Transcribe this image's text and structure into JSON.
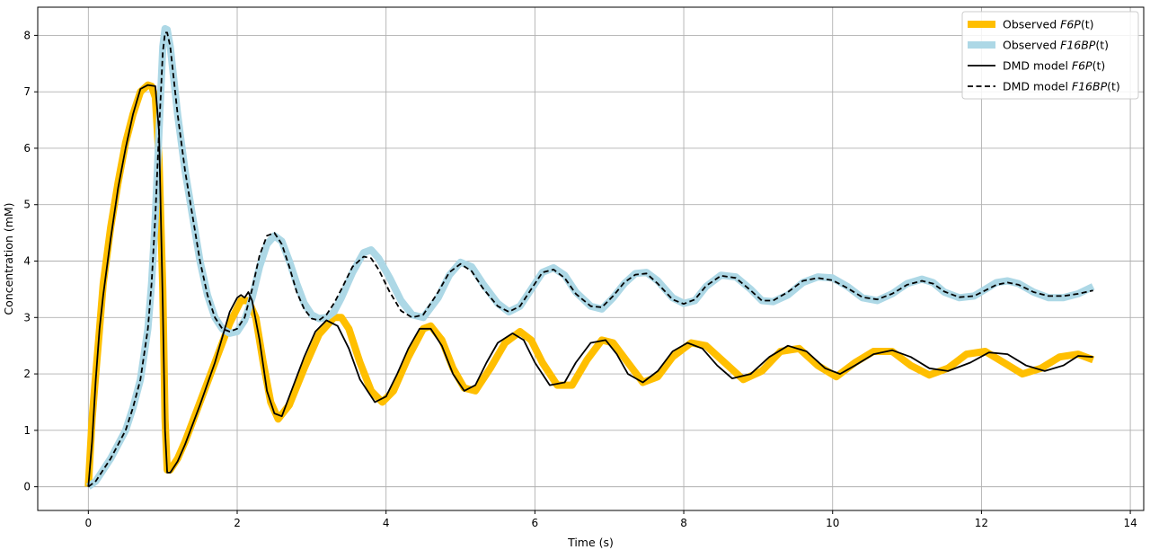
{
  "chart_data": {
    "type": "line",
    "title": "",
    "xlabel": "Time (s)",
    "ylabel": "Concentration (mM)",
    "xlim": [
      -0.68,
      14.18
    ],
    "ylim": [
      -0.42,
      8.5
    ],
    "xticks": [
      0,
      2,
      4,
      6,
      8,
      10,
      12,
      14
    ],
    "yticks": [
      0,
      1,
      2,
      3,
      4,
      5,
      6,
      7,
      8
    ],
    "grid": true,
    "legend_position": "upper right",
    "series": [
      {
        "name": "Observed F6P(t)",
        "legend_prefix": "Observed ",
        "legend_italic": "F6P",
        "legend_suffix": "(t)",
        "style": "thick",
        "color": "#FFBF00",
        "x": [
          0,
          0.05,
          0.1,
          0.15,
          0.2,
          0.3,
          0.4,
          0.5,
          0.6,
          0.7,
          0.8,
          0.85,
          0.9,
          0.95,
          1.0,
          1.03,
          1.06,
          1.1,
          1.2,
          1.3,
          1.5,
          1.7,
          1.9,
          2.05,
          2.15,
          2.25,
          2.35,
          2.45,
          2.55,
          2.7,
          2.9,
          3.1,
          3.3,
          3.4,
          3.5,
          3.65,
          3.8,
          3.95,
          4.1,
          4.3,
          4.5,
          4.6,
          4.75,
          4.9,
          5.05,
          5.2,
          5.4,
          5.6,
          5.8,
          5.95,
          6.1,
          6.3,
          6.5,
          6.7,
          6.9,
          7.05,
          7.25,
          7.45,
          7.65,
          7.85,
          8.1,
          8.3,
          8.55,
          8.8,
          9.05,
          9.3,
          9.55,
          9.8,
          10.05,
          10.3,
          10.55,
          10.8,
          11.05,
          11.3,
          11.55,
          11.8,
          12.05,
          12.3,
          12.55,
          12.8,
          13.05,
          13.3,
          13.5
        ],
        "y": [
          0,
          1.2,
          2.0,
          2.8,
          3.6,
          4.6,
          5.4,
          6.1,
          6.6,
          7.0,
          7.12,
          7.1,
          6.9,
          5.8,
          3.5,
          1.2,
          0.3,
          0.3,
          0.5,
          0.8,
          1.5,
          2.2,
          2.9,
          3.3,
          3.3,
          3.0,
          2.2,
          1.5,
          1.2,
          1.45,
          2.1,
          2.7,
          3.0,
          3.0,
          2.8,
          2.2,
          1.7,
          1.5,
          1.7,
          2.3,
          2.8,
          2.85,
          2.6,
          2.1,
          1.75,
          1.7,
          2.1,
          2.55,
          2.75,
          2.6,
          2.2,
          1.8,
          1.8,
          2.25,
          2.6,
          2.55,
          2.2,
          1.85,
          1.95,
          2.3,
          2.55,
          2.5,
          2.2,
          1.9,
          2.05,
          2.4,
          2.45,
          2.15,
          1.95,
          2.2,
          2.4,
          2.4,
          2.15,
          1.98,
          2.1,
          2.35,
          2.4,
          2.2,
          2.0,
          2.1,
          2.3,
          2.35,
          2.25
        ]
      },
      {
        "name": "Observed F16BP(t)",
        "legend_prefix": "Observed ",
        "legend_italic": "F16BP",
        "legend_suffix": "(t)",
        "style": "thick",
        "color": "#ADD8E6",
        "x": [
          0,
          0.1,
          0.2,
          0.3,
          0.4,
          0.5,
          0.6,
          0.7,
          0.8,
          0.85,
          0.9,
          0.95,
          1.0,
          1.03,
          1.06,
          1.1,
          1.15,
          1.2,
          1.3,
          1.4,
          1.5,
          1.6,
          1.7,
          1.8,
          1.9,
          2.0,
          2.1,
          2.2,
          2.3,
          2.4,
          2.5,
          2.6,
          2.7,
          2.8,
          2.9,
          3.0,
          3.1,
          3.2,
          3.3,
          3.4,
          3.55,
          3.7,
          3.8,
          3.9,
          4.05,
          4.2,
          4.35,
          4.5,
          4.7,
          4.85,
          5.0,
          5.15,
          5.3,
          5.5,
          5.65,
          5.8,
          5.95,
          6.1,
          6.25,
          6.4,
          6.55,
          6.75,
          6.9,
          7.05,
          7.2,
          7.35,
          7.5,
          7.65,
          7.85,
          8.0,
          8.15,
          8.3,
          8.5,
          8.7,
          8.9,
          9.05,
          9.2,
          9.4,
          9.6,
          9.8,
          10.0,
          10.2,
          10.4,
          10.6,
          10.8,
          11.0,
          11.2,
          11.35,
          11.5,
          11.7,
          11.9,
          12.05,
          12.2,
          12.35,
          12.5,
          12.7,
          12.9,
          13.1,
          13.3,
          13.5
        ],
        "y": [
          0,
          0.1,
          0.3,
          0.5,
          0.75,
          1.0,
          1.4,
          1.9,
          2.8,
          3.6,
          4.8,
          6.3,
          7.8,
          8.12,
          8.1,
          7.8,
          7.2,
          6.6,
          5.6,
          4.8,
          4.0,
          3.4,
          3.0,
          2.8,
          2.72,
          2.75,
          2.95,
          3.35,
          3.9,
          4.3,
          4.45,
          4.35,
          4.0,
          3.6,
          3.25,
          3.05,
          2.98,
          3.0,
          3.1,
          3.35,
          3.8,
          4.15,
          4.2,
          4.05,
          3.7,
          3.3,
          3.05,
          3.0,
          3.35,
          3.75,
          3.98,
          3.9,
          3.6,
          3.25,
          3.1,
          3.2,
          3.5,
          3.8,
          3.88,
          3.75,
          3.45,
          3.2,
          3.15,
          3.35,
          3.6,
          3.78,
          3.8,
          3.65,
          3.35,
          3.25,
          3.3,
          3.55,
          3.75,
          3.72,
          3.5,
          3.3,
          3.28,
          3.4,
          3.62,
          3.72,
          3.7,
          3.55,
          3.35,
          3.3,
          3.42,
          3.6,
          3.68,
          3.62,
          3.45,
          3.35,
          3.38,
          3.5,
          3.62,
          3.65,
          3.6,
          3.45,
          3.35,
          3.35,
          3.42,
          3.55
        ]
      },
      {
        "name": "DMD model F6P(t)",
        "legend_prefix": "DMD model ",
        "legend_italic": "F6P",
        "legend_suffix": "(t)",
        "style": "solid",
        "color": "#000000",
        "x": [
          0,
          0.05,
          0.1,
          0.15,
          0.2,
          0.3,
          0.4,
          0.5,
          0.6,
          0.7,
          0.8,
          0.9,
          0.95,
          1.0,
          1.03,
          1.06,
          1.1,
          1.2,
          1.3,
          1.5,
          1.7,
          1.9,
          2.0,
          2.05,
          2.1,
          2.15,
          2.2,
          2.3,
          2.4,
          2.5,
          2.6,
          2.7,
          2.9,
          3.05,
          3.2,
          3.35,
          3.5,
          3.65,
          3.85,
          4.0,
          4.15,
          4.3,
          4.45,
          4.6,
          4.75,
          4.9,
          5.05,
          5.2,
          5.35,
          5.5,
          5.7,
          5.85,
          6.0,
          6.2,
          6.4,
          6.55,
          6.75,
          6.95,
          7.1,
          7.25,
          7.45,
          7.65,
          7.85,
          8.05,
          8.25,
          8.45,
          8.65,
          8.9,
          9.15,
          9.4,
          9.65,
          9.9,
          10.1,
          10.3,
          10.55,
          10.8,
          11.05,
          11.3,
          11.55,
          11.85,
          12.1,
          12.35,
          12.6,
          12.85,
          13.1,
          13.3,
          13.5
        ],
        "y": [
          0,
          0.8,
          1.9,
          2.8,
          3.4,
          4.4,
          5.3,
          6.0,
          6.6,
          7.05,
          7.12,
          7.1,
          6.3,
          3.2,
          1.0,
          0.25,
          0.25,
          0.45,
          0.75,
          1.45,
          2.2,
          3.1,
          3.35,
          3.4,
          3.35,
          3.45,
          3.3,
          2.6,
          1.7,
          1.3,
          1.25,
          1.6,
          2.3,
          2.75,
          2.95,
          2.85,
          2.45,
          1.9,
          1.5,
          1.6,
          2.0,
          2.45,
          2.8,
          2.8,
          2.5,
          2.0,
          1.7,
          1.8,
          2.2,
          2.55,
          2.72,
          2.6,
          2.2,
          1.8,
          1.85,
          2.2,
          2.55,
          2.6,
          2.35,
          2.0,
          1.85,
          2.05,
          2.4,
          2.55,
          2.45,
          2.15,
          1.92,
          2.0,
          2.3,
          2.5,
          2.4,
          2.1,
          2.0,
          2.15,
          2.35,
          2.42,
          2.3,
          2.1,
          2.05,
          2.2,
          2.38,
          2.35,
          2.15,
          2.05,
          2.15,
          2.32,
          2.3
        ]
      },
      {
        "name": "DMD model F16BP(t)",
        "legend_prefix": "DMD model ",
        "legend_italic": "F16BP",
        "legend_suffix": "(t)",
        "style": "dashed",
        "color": "#000000",
        "x": [
          0,
          0.1,
          0.2,
          0.3,
          0.4,
          0.5,
          0.6,
          0.7,
          0.8,
          0.85,
          0.9,
          0.95,
          1.0,
          1.03,
          1.06,
          1.1,
          1.15,
          1.2,
          1.3,
          1.4,
          1.5,
          1.6,
          1.7,
          1.8,
          1.9,
          2.0,
          2.1,
          2.2,
          2.3,
          2.4,
          2.5,
          2.6,
          2.7,
          2.8,
          2.9,
          3.0,
          3.1,
          3.2,
          3.3,
          3.4,
          3.55,
          3.7,
          3.8,
          3.9,
          4.05,
          4.2,
          4.35,
          4.5,
          4.7,
          4.85,
          5.0,
          5.15,
          5.3,
          5.5,
          5.65,
          5.8,
          5.95,
          6.1,
          6.25,
          6.4,
          6.55,
          6.75,
          6.9,
          7.05,
          7.2,
          7.35,
          7.5,
          7.65,
          7.85,
          8.0,
          8.15,
          8.3,
          8.5,
          8.7,
          8.9,
          9.05,
          9.2,
          9.4,
          9.6,
          9.8,
          10.0,
          10.2,
          10.4,
          10.6,
          10.8,
          11.0,
          11.2,
          11.35,
          11.5,
          11.7,
          11.9,
          12.05,
          12.2,
          12.35,
          12.5,
          12.7,
          12.9,
          13.1,
          13.3,
          13.5
        ],
        "y": [
          0,
          0.1,
          0.3,
          0.5,
          0.75,
          1.0,
          1.4,
          1.9,
          2.8,
          3.6,
          4.8,
          6.3,
          7.7,
          8.05,
          8.05,
          7.8,
          7.2,
          6.6,
          5.6,
          4.8,
          4.0,
          3.4,
          3.0,
          2.8,
          2.75,
          2.8,
          3.0,
          3.5,
          4.1,
          4.45,
          4.5,
          4.3,
          3.9,
          3.45,
          3.15,
          2.98,
          2.95,
          3.05,
          3.25,
          3.5,
          3.9,
          4.08,
          4.05,
          3.85,
          3.45,
          3.12,
          3.0,
          3.05,
          3.45,
          3.8,
          3.95,
          3.82,
          3.52,
          3.2,
          3.1,
          3.2,
          3.5,
          3.8,
          3.85,
          3.7,
          3.42,
          3.2,
          3.18,
          3.38,
          3.62,
          3.76,
          3.78,
          3.6,
          3.32,
          3.24,
          3.32,
          3.56,
          3.74,
          3.7,
          3.48,
          3.3,
          3.3,
          3.45,
          3.65,
          3.7,
          3.66,
          3.52,
          3.36,
          3.32,
          3.42,
          3.58,
          3.65,
          3.6,
          3.46,
          3.36,
          3.38,
          3.48,
          3.58,
          3.62,
          3.58,
          3.45,
          3.38,
          3.38,
          3.42,
          3.48
        ]
      }
    ]
  }
}
